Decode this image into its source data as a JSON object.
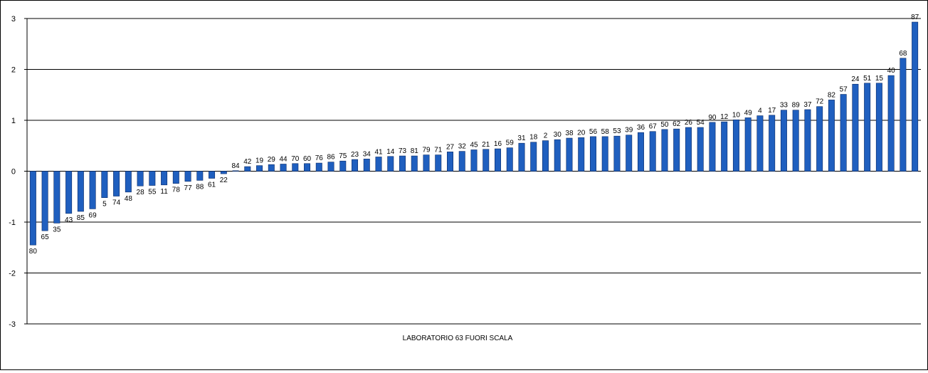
{
  "chart_data": {
    "type": "bar",
    "title": "",
    "xlabel": "",
    "ylabel": "",
    "ylim": [
      -3,
      3
    ],
    "yticks": [
      -3,
      -2,
      -1,
      0,
      1,
      2,
      3
    ],
    "grid": true,
    "bar_color": "#1f5fbf",
    "note": "LABORATORIO 63 FUORI SCALA",
    "categories": [
      "80",
      "65",
      "35",
      "43",
      "85",
      "69",
      "5",
      "74",
      "48",
      "28",
      "55",
      "11",
      "78",
      "77",
      "88",
      "61",
      "22",
      "84",
      "42",
      "19",
      "29",
      "44",
      "70",
      "60",
      "76",
      "86",
      "75",
      "23",
      "34",
      "41",
      "14",
      "73",
      "81",
      "79",
      "71",
      "27",
      "32",
      "45",
      "21",
      "16",
      "59",
      "31",
      "18",
      "2",
      "30",
      "38",
      "20",
      "56",
      "58",
      "53",
      "39",
      "36",
      "67",
      "50",
      "62",
      "26",
      "54",
      "90",
      "12",
      "10",
      "49",
      "4",
      "17",
      "33",
      "89",
      "37",
      "72",
      "82",
      "57",
      "24",
      "51",
      "15",
      "40",
      "68",
      "87"
    ],
    "values": [
      -1.45,
      -1.17,
      -1.02,
      -0.83,
      -0.79,
      -0.74,
      -0.52,
      -0.49,
      -0.41,
      -0.29,
      -0.28,
      -0.27,
      -0.24,
      -0.2,
      -0.18,
      -0.14,
      -0.05,
      0.01,
      0.09,
      0.11,
      0.13,
      0.14,
      0.15,
      0.15,
      0.16,
      0.18,
      0.2,
      0.23,
      0.24,
      0.28,
      0.29,
      0.3,
      0.3,
      0.32,
      0.32,
      0.38,
      0.39,
      0.42,
      0.43,
      0.44,
      0.46,
      0.55,
      0.57,
      0.6,
      0.62,
      0.65,
      0.66,
      0.68,
      0.68,
      0.69,
      0.71,
      0.76,
      0.78,
      0.82,
      0.83,
      0.86,
      0.86,
      0.96,
      0.97,
      1.01,
      1.05,
      1.09,
      1.1,
      1.2,
      1.2,
      1.21,
      1.27,
      1.4,
      1.51,
      1.71,
      1.73,
      1.73,
      1.88,
      2.22,
      2.93
    ]
  }
}
